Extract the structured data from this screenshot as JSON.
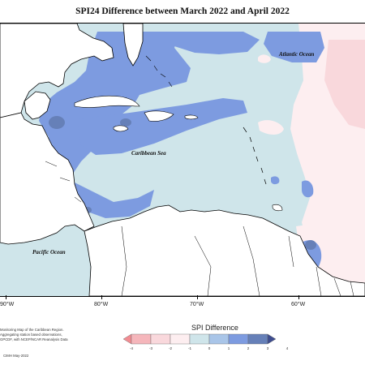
{
  "map": {
    "title": "SPI24 Difference between March 2022 and April 2022",
    "ocean_labels": {
      "atlantic": "Atlantic Ocean",
      "caribbean": "Caribbean Sea",
      "pacific": "Pacific Ocean"
    },
    "longitude_labels": [
      "90°W",
      "80°W",
      "70°W",
      "60°W"
    ],
    "credits": [
      "Monitoring Map of the Caribbean Region.",
      "Aggregating station based observations,",
      "GPCDF, with NCEP/NCAR Reanalysis Data"
    ],
    "credit_date": "CIMH May-2022"
  },
  "legend": {
    "title": "SPI Difference",
    "ticks": [
      "-4",
      "-3",
      "-2",
      "-1",
      "0",
      "1",
      "2",
      "3",
      "4"
    ],
    "colors": [
      "#f28c92",
      "#f5b6bb",
      "#f9d8dc",
      "#fdeef0",
      "#cfe5ea",
      "#a9c5e8",
      "#7d9be0",
      "#6680b8",
      "#3e4d8e"
    ]
  },
  "colors": {
    "land": "#ffffff",
    "near_zero": "#cfe5ea",
    "wet": "#7d9be0",
    "very_wet": "#6680b8",
    "slight_dry": "#fdeef0",
    "dry": "#f9d8dc"
  }
}
